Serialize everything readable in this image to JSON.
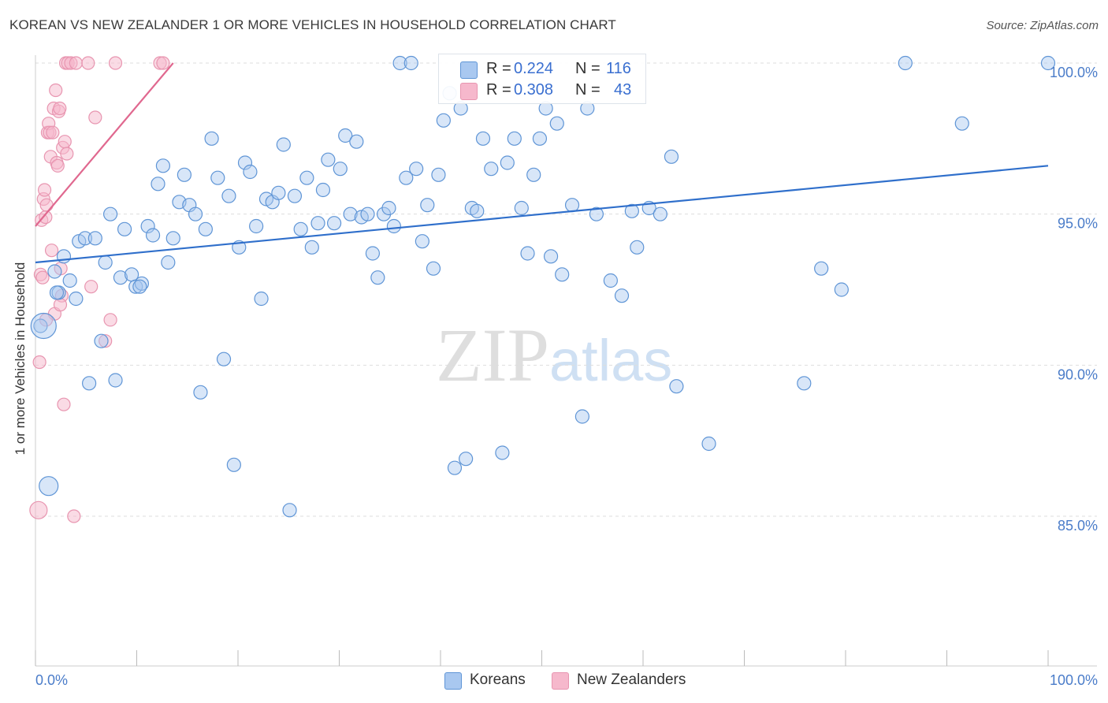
{
  "header": {
    "title": "KOREAN VS NEW ZEALANDER 1 OR MORE VEHICLES IN HOUSEHOLD CORRELATION CHART",
    "source": "Source: ZipAtlas.com"
  },
  "watermark": {
    "zip": "ZIP",
    "atlas": "atlas"
  },
  "legend": {
    "r_label": "R =",
    "n_label": "N =",
    "koreans": {
      "r": "0.224",
      "n": "116"
    },
    "new_zealanders": {
      "r": "0.308",
      "n": "43"
    }
  },
  "bottom_legend": {
    "koreans": "Koreans",
    "new_zealanders": "New Zealanders"
  },
  "colors": {
    "koreans_fill": "#a9c8f0",
    "koreans_stroke": "#5f95d6",
    "koreans_line": "#2f6fcb",
    "nz_fill": "#f6b8cc",
    "nz_stroke": "#e895b0",
    "nz_line": "#e0688f",
    "tick_text": "#4a7cc9",
    "grid": "#dddddd"
  },
  "chart_data": {
    "type": "scatter",
    "title": "KOREAN VS NEW ZEALANDER 1 OR MORE VEHICLES IN HOUSEHOLD CORRELATION CHART",
    "xlabel": "",
    "ylabel": "1 or more Vehicles in Household",
    "xlim": [
      0,
      100
    ],
    "ylim": [
      80,
      100.5
    ],
    "grid": true,
    "x_tick_labels": [
      "0.0%",
      "100.0%"
    ],
    "y_ticks": [
      85,
      90,
      95,
      100
    ],
    "y_tick_labels": [
      "85.0%",
      "90.0%",
      "95.0%",
      "100.0%"
    ],
    "series": [
      {
        "name": "Koreans",
        "r": 0.224,
        "n": 116,
        "trend": [
          [
            0,
            93.4
          ],
          [
            100,
            96.6
          ]
        ],
        "points": [
          [
            0.5,
            91.3
          ],
          [
            1.3,
            86.0
          ],
          [
            1.9,
            93.1
          ],
          [
            2.3,
            92.4
          ],
          [
            2.8,
            93.6
          ],
          [
            3.4,
            92.8
          ],
          [
            4.0,
            92.2
          ],
          [
            4.3,
            94.1
          ],
          [
            4.9,
            94.2
          ],
          [
            5.3,
            89.4
          ],
          [
            5.9,
            94.2
          ],
          [
            6.5,
            90.8
          ],
          [
            6.9,
            93.4
          ],
          [
            7.4,
            95.0
          ],
          [
            7.9,
            89.5
          ],
          [
            8.4,
            92.9
          ],
          [
            8.8,
            94.5
          ],
          [
            9.5,
            93.0
          ],
          [
            9.9,
            92.6
          ],
          [
            10.5,
            92.7
          ],
          [
            11.1,
            94.6
          ],
          [
            11.6,
            94.3
          ],
          [
            12.1,
            96.0
          ],
          [
            12.6,
            96.6
          ],
          [
            13.1,
            93.4
          ],
          [
            13.6,
            94.2
          ],
          [
            14.2,
            95.4
          ],
          [
            14.7,
            96.3
          ],
          [
            15.2,
            95.3
          ],
          [
            15.8,
            95.0
          ],
          [
            16.3,
            89.1
          ],
          [
            16.8,
            94.5
          ],
          [
            17.4,
            97.5
          ],
          [
            18.0,
            96.2
          ],
          [
            18.6,
            90.2
          ],
          [
            19.1,
            95.6
          ],
          [
            19.6,
            86.7
          ],
          [
            20.1,
            93.9
          ],
          [
            20.7,
            96.7
          ],
          [
            21.2,
            96.4
          ],
          [
            21.8,
            94.6
          ],
          [
            22.3,
            92.2
          ],
          [
            22.8,
            95.5
          ],
          [
            23.4,
            95.4
          ],
          [
            24.0,
            95.7
          ],
          [
            24.5,
            97.3
          ],
          [
            25.1,
            85.2
          ],
          [
            25.6,
            95.6
          ],
          [
            26.2,
            94.5
          ],
          [
            26.8,
            96.2
          ],
          [
            27.3,
            93.9
          ],
          [
            27.9,
            94.7
          ],
          [
            28.4,
            95.8
          ],
          [
            28.9,
            96.8
          ],
          [
            29.5,
            94.7
          ],
          [
            30.1,
            96.5
          ],
          [
            30.6,
            97.6
          ],
          [
            31.1,
            95.0
          ],
          [
            31.7,
            97.4
          ],
          [
            32.2,
            94.9
          ],
          [
            32.8,
            95.0
          ],
          [
            33.3,
            93.7
          ],
          [
            33.8,
            92.9
          ],
          [
            34.4,
            95.0
          ],
          [
            34.9,
            95.2
          ],
          [
            35.4,
            94.6
          ],
          [
            36.0,
            100.0
          ],
          [
            36.6,
            96.2
          ],
          [
            37.1,
            100.0
          ],
          [
            37.6,
            96.5
          ],
          [
            38.2,
            94.1
          ],
          [
            38.7,
            95.3
          ],
          [
            39.3,
            93.2
          ],
          [
            39.8,
            96.3
          ],
          [
            40.3,
            98.1
          ],
          [
            40.9,
            99.0
          ],
          [
            41.4,
            86.6
          ],
          [
            42.0,
            98.5
          ],
          [
            42.5,
            86.9
          ],
          [
            43.1,
            95.2
          ],
          [
            43.6,
            95.1
          ],
          [
            44.2,
            97.5
          ],
          [
            45.0,
            96.5
          ],
          [
            46.1,
            87.1
          ],
          [
            46.6,
            96.7
          ],
          [
            47.3,
            97.5
          ],
          [
            48.0,
            95.2
          ],
          [
            48.6,
            93.7
          ],
          [
            49.2,
            96.3
          ],
          [
            49.8,
            97.5
          ],
          [
            50.4,
            98.5
          ],
          [
            50.9,
            93.6
          ],
          [
            51.5,
            98.0
          ],
          [
            52.0,
            93.0
          ],
          [
            53.0,
            95.3
          ],
          [
            54.0,
            88.3
          ],
          [
            54.5,
            98.5
          ],
          [
            55.4,
            95.0
          ],
          [
            56.8,
            92.8
          ],
          [
            57.9,
            92.3
          ],
          [
            58.9,
            95.1
          ],
          [
            59.4,
            93.9
          ],
          [
            60.6,
            95.2
          ],
          [
            61.7,
            95.0
          ],
          [
            62.8,
            96.9
          ],
          [
            63.3,
            89.3
          ],
          [
            66.5,
            87.4
          ],
          [
            75.9,
            89.4
          ],
          [
            77.6,
            93.2
          ],
          [
            79.6,
            92.5
          ],
          [
            85.9,
            100.0
          ],
          [
            91.5,
            98.0
          ],
          [
            100.0,
            100.0
          ],
          [
            0.8,
            91.3
          ],
          [
            2.1,
            92.4
          ],
          [
            10.3,
            92.6
          ]
        ]
      },
      {
        "name": "New Zealanders",
        "r": 0.308,
        "n": 43,
        "trend": [
          [
            0,
            94.6
          ],
          [
            13.6,
            100.0
          ]
        ],
        "points": [
          [
            0.3,
            85.2
          ],
          [
            0.4,
            90.1
          ],
          [
            0.5,
            93.0
          ],
          [
            0.6,
            94.8
          ],
          [
            0.7,
            92.9
          ],
          [
            0.8,
            95.5
          ],
          [
            0.9,
            95.8
          ],
          [
            1.0,
            94.9
          ],
          [
            1.1,
            95.3
          ],
          [
            1.2,
            97.7
          ],
          [
            1.3,
            98.0
          ],
          [
            1.4,
            97.7
          ],
          [
            1.5,
            96.9
          ],
          [
            1.6,
            93.8
          ],
          [
            1.7,
            97.7
          ],
          [
            1.8,
            98.5
          ],
          [
            1.9,
            91.7
          ],
          [
            2.0,
            99.1
          ],
          [
            2.1,
            96.7
          ],
          [
            2.2,
            96.6
          ],
          [
            2.3,
            98.4
          ],
          [
            2.4,
            98.5
          ],
          [
            2.5,
            93.2
          ],
          [
            2.6,
            92.3
          ],
          [
            2.7,
            97.2
          ],
          [
            2.8,
            88.7
          ],
          [
            2.9,
            97.4
          ],
          [
            3.0,
            100.0
          ],
          [
            3.1,
            97.0
          ],
          [
            3.2,
            100.0
          ],
          [
            3.5,
            100.0
          ],
          [
            3.8,
            85.0
          ],
          [
            4.0,
            100.0
          ],
          [
            5.2,
            100.0
          ],
          [
            5.5,
            92.6
          ],
          [
            5.9,
            98.2
          ],
          [
            6.9,
            90.8
          ],
          [
            7.4,
            91.5
          ],
          [
            7.9,
            100.0
          ],
          [
            12.3,
            100.0
          ],
          [
            12.6,
            100.0
          ],
          [
            1.05,
            91.5
          ],
          [
            2.45,
            92.0
          ]
        ]
      }
    ]
  }
}
